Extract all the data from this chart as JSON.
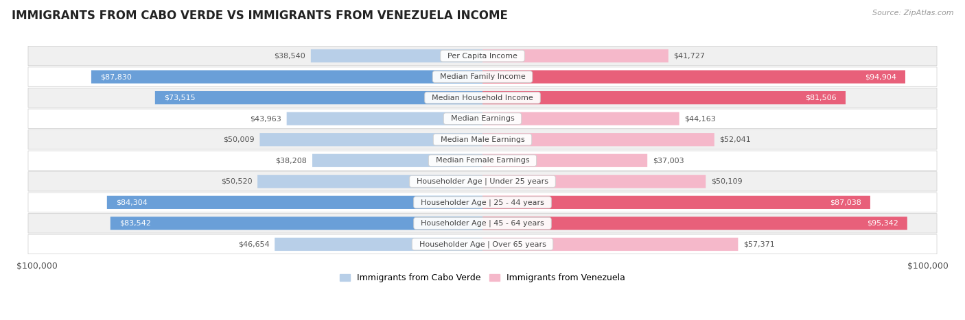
{
  "title": "IMMIGRANTS FROM CABO VERDE VS IMMIGRANTS FROM VENEZUELA INCOME",
  "source": "Source: ZipAtlas.com",
  "categories": [
    "Per Capita Income",
    "Median Family Income",
    "Median Household Income",
    "Median Earnings",
    "Median Male Earnings",
    "Median Female Earnings",
    "Householder Age | Under 25 years",
    "Householder Age | 25 - 44 years",
    "Householder Age | 45 - 64 years",
    "Householder Age | Over 65 years"
  ],
  "cabo_verde_values": [
    38540,
    87830,
    73515,
    43963,
    50009,
    38208,
    50520,
    84304,
    83542,
    46654
  ],
  "venezuela_values": [
    41727,
    94904,
    81506,
    44163,
    52041,
    37003,
    50109,
    87038,
    95342,
    57371
  ],
  "cabo_verde_color_light": "#b8cfe8",
  "cabo_verde_color_dark": "#6a9fd8",
  "venezuela_color_light": "#f5b8ca",
  "venezuela_color_dark": "#e8607a",
  "max_value": 100000,
  "background_color": "#ffffff",
  "row_colors": [
    "#f0f0f0",
    "#ffffff",
    "#f0f0f0",
    "#ffffff",
    "#f0f0f0",
    "#ffffff",
    "#f0f0f0",
    "#ffffff",
    "#f0f0f0",
    "#ffffff"
  ],
  "cabo_verde_legend": "Immigrants from Cabo Verde",
  "venezuela_legend": "Immigrants from Venezuela",
  "title_fontsize": 12,
  "label_fontsize": 8,
  "category_fontsize": 8,
  "axis_label_fontsize": 9,
  "inside_label_threshold": 60000
}
